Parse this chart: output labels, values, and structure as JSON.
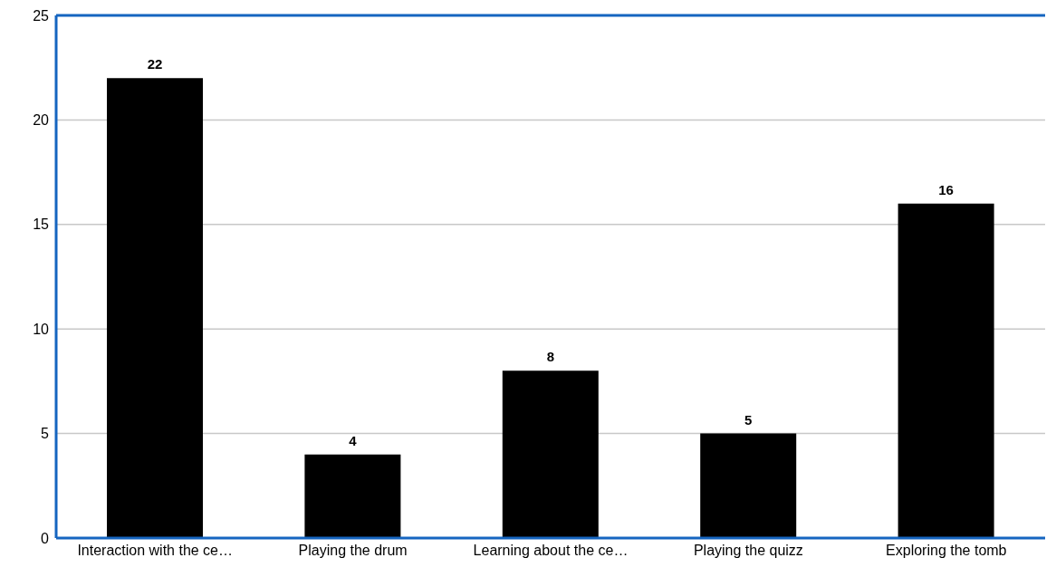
{
  "chart_data": {
    "type": "bar",
    "categories": [
      "Interaction with the ce…",
      "Playing the drum",
      "Learning about the ce…",
      "Playing the quizz",
      "Exploring the tomb"
    ],
    "values": [
      22,
      4,
      8,
      5,
      16
    ],
    "color": "#000000",
    "ylim": [
      0,
      25
    ],
    "yticks": [
      0,
      5,
      10,
      15,
      20,
      25
    ],
    "grid": "y",
    "data_labels": true
  }
}
